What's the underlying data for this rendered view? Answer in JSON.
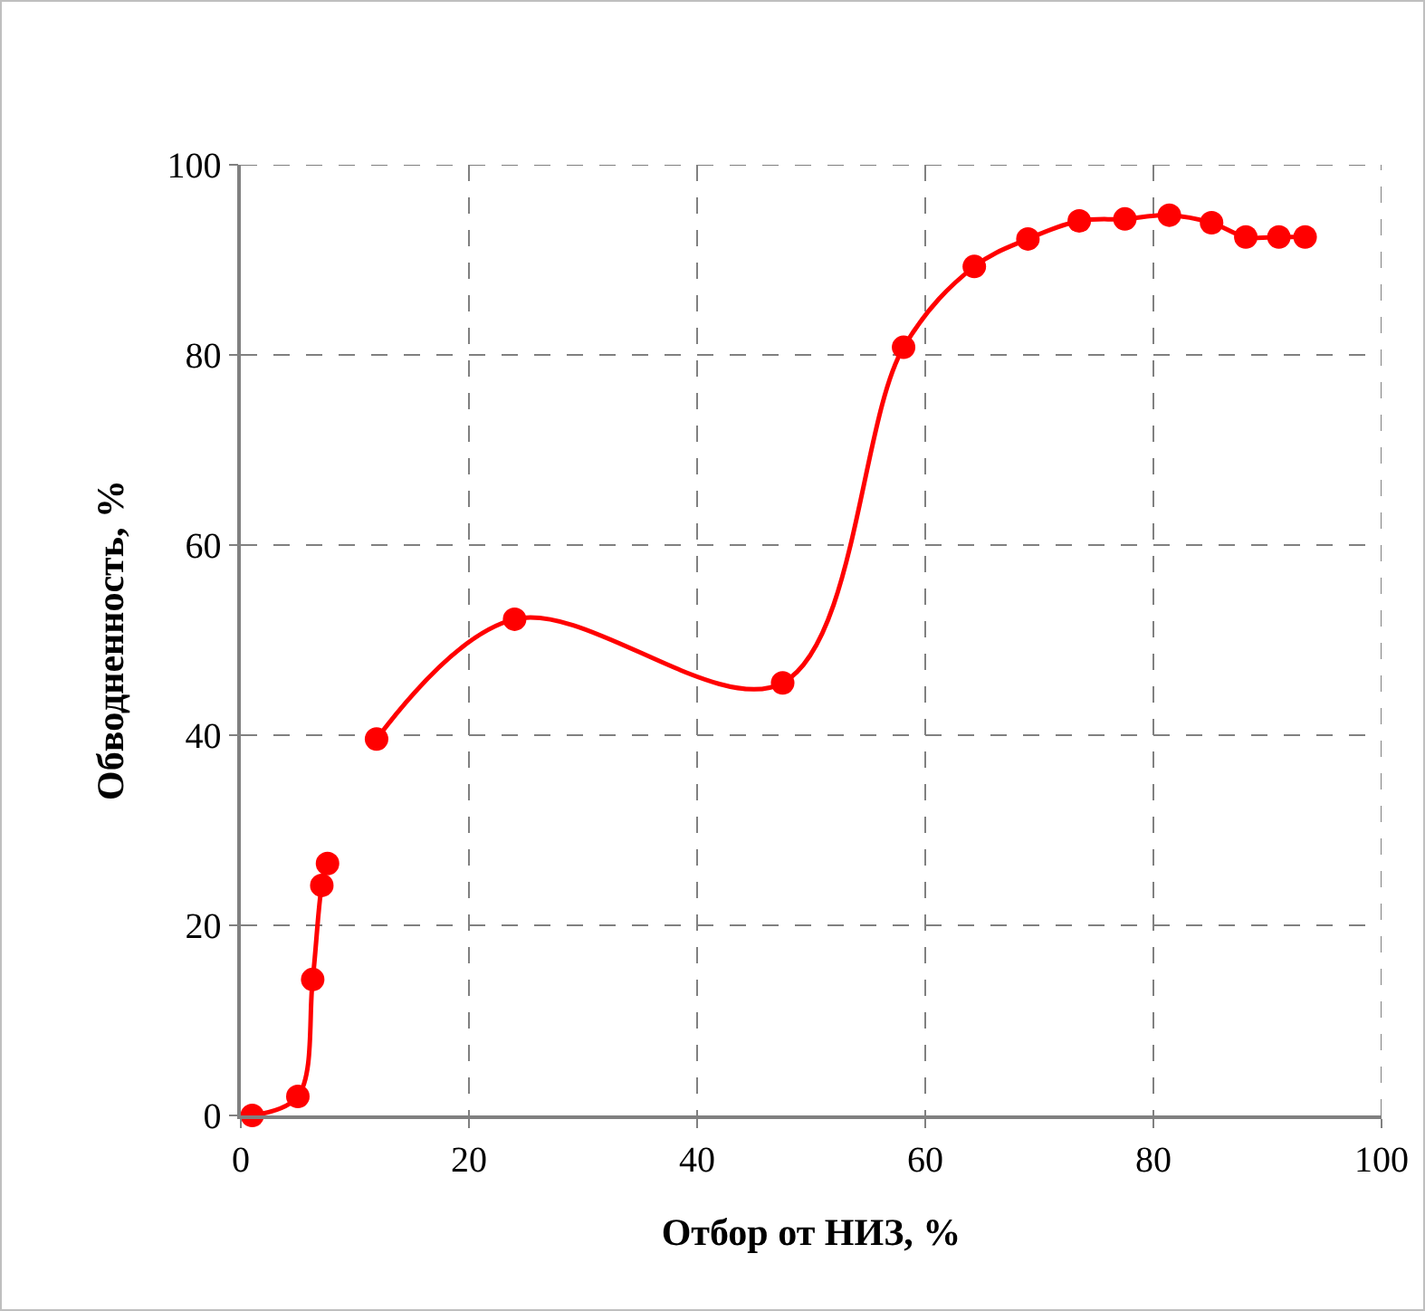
{
  "chart_data": {
    "type": "line",
    "xlabel": "Отбор от НИЗ, %",
    "ylabel": "Обводненность, %",
    "x": [
      1,
      5,
      6.3,
      7.1,
      7.6,
      9.8,
      11.9,
      24,
      47.5,
      58.1,
      64.3,
      69,
      73.5,
      77.5,
      81.4,
      85.1,
      88.1,
      91,
      93.3
    ],
    "series": [
      {
        "color": "#ff0000",
        "values": [
          0,
          2,
          14.3,
          24.2,
          26.5,
          null,
          39.6,
          52.2,
          45.5,
          80.8,
          89.3,
          92.2,
          94.1,
          94.3,
          94.7,
          93.9,
          92.4,
          92.4,
          92.4
        ]
      }
    ],
    "xlim": [
      0,
      100
    ],
    "xticks": [
      0,
      20,
      40,
      60,
      80,
      100
    ],
    "ylim": [
      0,
      100
    ],
    "yticks": [
      0,
      20,
      40,
      60,
      80,
      100
    ],
    "grid": true,
    "marker": "circle",
    "line_style": "solid"
  }
}
